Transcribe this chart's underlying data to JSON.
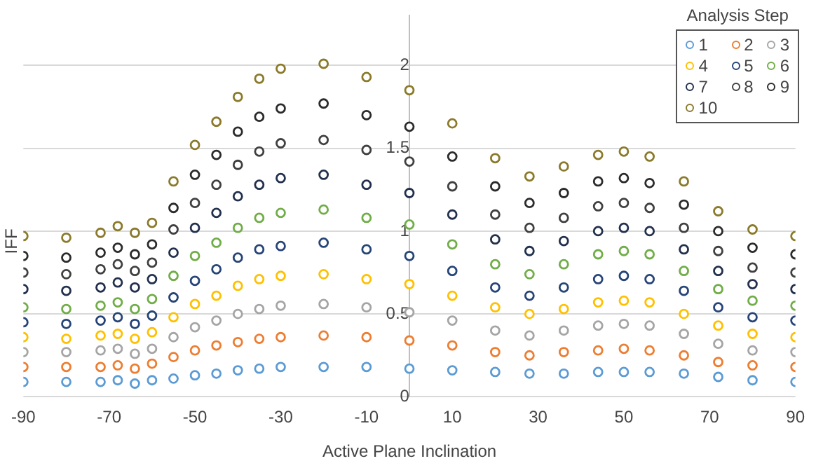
{
  "chart_data": {
    "type": "scatter",
    "xlabel": "Active Plane Inclination",
    "ylabel": "IFF",
    "legend_title": "Analysis Step",
    "legend": "top right",
    "grid": "y",
    "marker": "circle",
    "x": [
      -90,
      -80,
      -72,
      -68,
      -64,
      -60,
      -55,
      -50,
      -45,
      -40,
      -35,
      -30,
      -20,
      -10,
      0,
      10,
      20,
      28,
      36,
      44,
      50,
      56,
      64,
      72,
      80,
      90
    ],
    "xlim": [
      -90,
      90
    ],
    "xticks": [
      -90,
      -70,
      -50,
      -30,
      -10,
      10,
      30,
      50,
      70,
      90
    ],
    "ylim": [
      0,
      2.3
    ],
    "yticks": [
      0,
      0.5,
      1,
      1.5,
      2
    ],
    "series": [
      {
        "name": "1",
        "color": "#5b9bd5",
        "values": [
          0.09,
          0.09,
          0.09,
          0.1,
          0.08,
          0.1,
          0.11,
          0.13,
          0.14,
          0.16,
          0.17,
          0.18,
          0.18,
          0.18,
          0.17,
          0.16,
          0.15,
          0.14,
          0.14,
          0.15,
          0.15,
          0.15,
          0.14,
          0.12,
          0.1,
          0.09
        ]
      },
      {
        "name": "2",
        "color": "#ed7d31",
        "values": [
          0.18,
          0.18,
          0.18,
          0.19,
          0.17,
          0.2,
          0.24,
          0.28,
          0.31,
          0.33,
          0.35,
          0.36,
          0.37,
          0.36,
          0.34,
          0.31,
          0.27,
          0.25,
          0.27,
          0.28,
          0.29,
          0.28,
          0.25,
          0.21,
          0.19,
          0.18
        ]
      },
      {
        "name": "3",
        "color": "#a5a5a5",
        "values": [
          0.27,
          0.27,
          0.28,
          0.29,
          0.26,
          0.29,
          0.36,
          0.42,
          0.46,
          0.5,
          0.53,
          0.55,
          0.56,
          0.54,
          0.51,
          0.46,
          0.4,
          0.37,
          0.4,
          0.43,
          0.44,
          0.43,
          0.38,
          0.32,
          0.28,
          0.27
        ]
      },
      {
        "name": "4",
        "color": "#ffc000",
        "values": [
          0.36,
          0.35,
          0.37,
          0.38,
          0.35,
          0.39,
          0.48,
          0.56,
          0.61,
          0.67,
          0.71,
          0.73,
          0.74,
          0.71,
          0.68,
          0.61,
          0.54,
          0.5,
          0.53,
          0.57,
          0.58,
          0.57,
          0.5,
          0.43,
          0.38,
          0.36
        ]
      },
      {
        "name": "5",
        "color": "#264478",
        "values": [
          0.45,
          0.44,
          0.46,
          0.48,
          0.44,
          0.49,
          0.6,
          0.7,
          0.77,
          0.84,
          0.89,
          0.91,
          0.93,
          0.89,
          0.85,
          0.76,
          0.66,
          0.61,
          0.66,
          0.71,
          0.73,
          0.71,
          0.64,
          0.54,
          0.48,
          0.46
        ]
      },
      {
        "name": "6",
        "color": "#70ad47",
        "values": [
          0.54,
          0.53,
          0.55,
          0.57,
          0.53,
          0.59,
          0.73,
          0.85,
          0.93,
          1.02,
          1.08,
          1.11,
          1.13,
          1.08,
          1.04,
          0.92,
          0.8,
          0.74,
          0.8,
          0.86,
          0.88,
          0.86,
          0.76,
          0.65,
          0.58,
          0.55
        ]
      },
      {
        "name": "7",
        "color": "#22304d",
        "values": [
          0.65,
          0.64,
          0.66,
          0.69,
          0.66,
          0.71,
          0.87,
          1.02,
          1.11,
          1.21,
          1.28,
          1.32,
          1.34,
          1.28,
          1.23,
          1.1,
          0.95,
          0.88,
          0.94,
          1.0,
          1.02,
          1.0,
          0.89,
          0.76,
          0.68,
          0.65
        ]
      },
      {
        "name": "8",
        "color": "#404040",
        "values": [
          0.75,
          0.74,
          0.77,
          0.8,
          0.76,
          0.81,
          1.01,
          1.17,
          1.28,
          1.4,
          1.48,
          1.53,
          1.55,
          1.49,
          1.42,
          1.27,
          1.1,
          1.02,
          1.08,
          1.15,
          1.17,
          1.14,
          1.02,
          0.88,
          0.78,
          0.75
        ]
      },
      {
        "name": "9",
        "color": "#2b2b2b",
        "values": [
          0.85,
          0.84,
          0.87,
          0.9,
          0.86,
          0.92,
          1.14,
          1.34,
          1.46,
          1.6,
          1.69,
          1.74,
          1.77,
          1.7,
          1.63,
          1.45,
          1.27,
          1.17,
          1.23,
          1.3,
          1.32,
          1.29,
          1.16,
          1.0,
          0.9,
          0.86
        ]
      },
      {
        "name": "10",
        "color": "#8a7a2a",
        "values": [
          0.97,
          0.96,
          0.99,
          1.03,
          0.99,
          1.05,
          1.3,
          1.52,
          1.66,
          1.81,
          1.92,
          1.98,
          2.01,
          1.93,
          1.85,
          1.65,
          1.44,
          1.33,
          1.39,
          1.46,
          1.48,
          1.45,
          1.3,
          1.12,
          1.01,
          0.97
        ]
      }
    ]
  }
}
